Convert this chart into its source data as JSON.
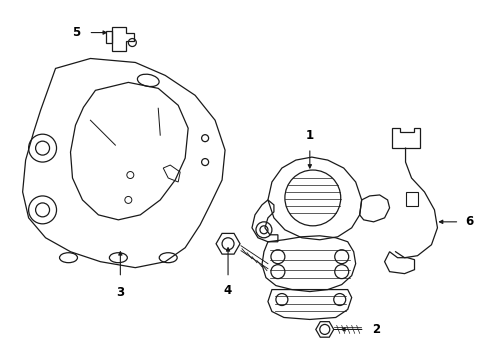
{
  "background_color": "#ffffff",
  "line_color": "#1a1a1a",
  "text_color": "#000000",
  "fig_width": 4.9,
  "fig_height": 3.6,
  "dpi": 100
}
